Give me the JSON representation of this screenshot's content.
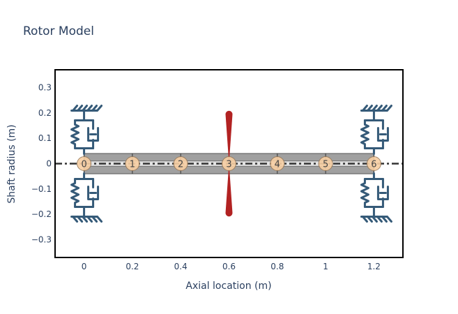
{
  "chart_data": {
    "type": "scatter",
    "title": "Rotor Model",
    "xlabel": "Axial location (m)",
    "ylabel": "Shaft radius (m)",
    "xlim": [
      -0.12,
      1.32
    ],
    "ylim": [
      -0.37,
      0.37
    ],
    "xticks": [
      0,
      0.2,
      0.4,
      0.6,
      0.8,
      1,
      1.2
    ],
    "xtick_labels": [
      "0",
      "0.2",
      "0.4",
      "0.6",
      "0.8",
      "1",
      "1.2"
    ],
    "yticks": [
      0.3,
      0.2,
      0.1,
      0,
      -0.1,
      -0.2,
      -0.3
    ],
    "ytick_labels": [
      "0.3",
      "0.2",
      "0.1",
      "0",
      "−0.1",
      "−0.2",
      "−0.3"
    ],
    "grid": false,
    "shaft": {
      "x_start": 0,
      "x_end": 1.2,
      "outer_radius": 0.04,
      "inner_radius": 0.01
    },
    "nodes": [
      {
        "label": "0",
        "x": 0
      },
      {
        "label": "1",
        "x": 0.2
      },
      {
        "label": "2",
        "x": 0.4
      },
      {
        "label": "3",
        "x": 0.6
      },
      {
        "label": "4",
        "x": 0.8
      },
      {
        "label": "5",
        "x": 1.0
      },
      {
        "label": "6",
        "x": 1.2
      }
    ],
    "disk": {
      "x": 0.6,
      "radius": 0.2
    },
    "bearings": [
      {
        "x": 0
      },
      {
        "x": 1.2
      }
    ],
    "colors": {
      "shaft": "#a0a0a0",
      "shaft_edge": "#555555",
      "node_fill": "#f8cfa3",
      "node_edge": "#9a7b5a",
      "disk": "#b22222",
      "bearing": "#355a78",
      "centerline": "#333333"
    }
  }
}
